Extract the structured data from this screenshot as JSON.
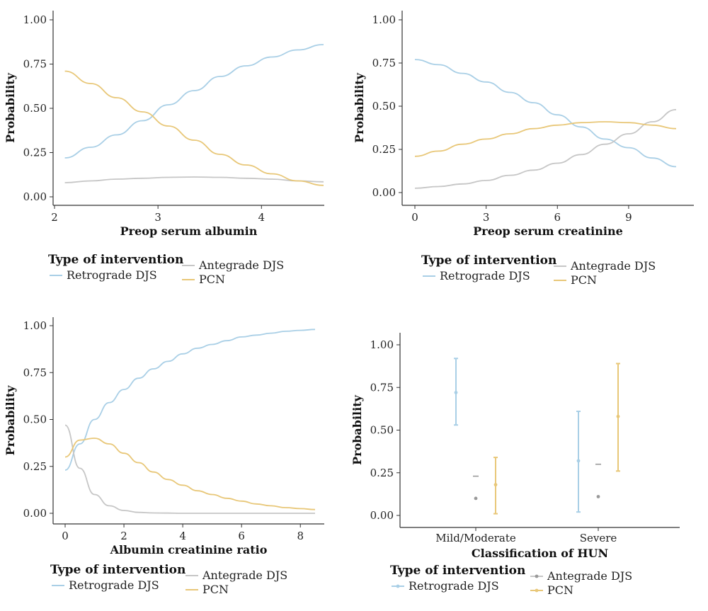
{
  "colors": {
    "retrograde": "#a9cfe6",
    "antegrade": "#c6c6c6",
    "pcn": "#e8c778",
    "axis": "#333333"
  },
  "chart_data": [
    {
      "id": "panel-albumin",
      "type": "line",
      "xlabel": "Preop serum albumin",
      "ylabel": "Probability",
      "xlim": [
        2.1,
        4.6
      ],
      "ylim": [
        0,
        1
      ],
      "xticks": [
        2,
        3,
        4
      ],
      "yticks": [
        "0.00",
        "0.25",
        "0.50",
        "0.75",
        "1.00"
      ],
      "x": [
        2.1,
        2.35,
        2.6,
        2.85,
        3.1,
        3.35,
        3.6,
        3.85,
        4.1,
        4.35,
        4.6
      ],
      "series": [
        {
          "name": "Retrograde DJS",
          "color": "retrograde",
          "values": [
            0.22,
            0.28,
            0.35,
            0.43,
            0.52,
            0.6,
            0.68,
            0.74,
            0.79,
            0.83,
            0.86
          ]
        },
        {
          "name": "Antegrade DJS",
          "color": "antegrade",
          "values": [
            0.08,
            0.09,
            0.1,
            0.105,
            0.11,
            0.112,
            0.11,
            0.105,
            0.1,
            0.09,
            0.085
          ]
        },
        {
          "name": "PCN",
          "color": "pcn",
          "values": [
            0.71,
            0.64,
            0.56,
            0.48,
            0.4,
            0.32,
            0.24,
            0.18,
            0.13,
            0.09,
            0.065
          ]
        }
      ],
      "legend": {
        "title": "Type of intervention",
        "entries": [
          "Retrograde DJS",
          "Antegrade DJS",
          "PCN"
        ]
      }
    },
    {
      "id": "panel-creatinine",
      "type": "line",
      "xlabel": "Preop serum creatinine",
      "ylabel": "Probability",
      "xlim": [
        0,
        11
      ],
      "ylim": [
        0,
        1
      ],
      "xticks": [
        0,
        3,
        6,
        9
      ],
      "yticks": [
        "0.00",
        "0.25",
        "0.50",
        "0.75",
        "1.00"
      ],
      "x": [
        0,
        1,
        2,
        3,
        4,
        5,
        6,
        7,
        8,
        9,
        10,
        11
      ],
      "series": [
        {
          "name": "Retrograde DJS",
          "color": "retrograde",
          "values": [
            0.77,
            0.74,
            0.69,
            0.64,
            0.58,
            0.52,
            0.45,
            0.38,
            0.31,
            0.26,
            0.2,
            0.15
          ]
        },
        {
          "name": "Antegrade DJS",
          "color": "antegrade",
          "values": [
            0.025,
            0.035,
            0.05,
            0.07,
            0.1,
            0.13,
            0.17,
            0.22,
            0.28,
            0.34,
            0.41,
            0.48
          ]
        },
        {
          "name": "PCN",
          "color": "pcn",
          "values": [
            0.21,
            0.24,
            0.28,
            0.31,
            0.34,
            0.37,
            0.39,
            0.405,
            0.41,
            0.405,
            0.39,
            0.37
          ]
        }
      ],
      "legend": {
        "title": "Type of intervention",
        "entries": [
          "Retrograde DJS",
          "Antegrade DJS",
          "PCN"
        ]
      }
    },
    {
      "id": "panel-ratio",
      "type": "line",
      "xlabel": "Albumin creatinine ratio",
      "ylabel": "Probability",
      "xlim": [
        0,
        8.5
      ],
      "ylim": [
        0,
        1
      ],
      "xticks": [
        0,
        2,
        4,
        6,
        8
      ],
      "yticks": [
        "0.00",
        "0.25",
        "0.50",
        "0.75",
        "1.00"
      ],
      "x": [
        0,
        0.5,
        1,
        1.5,
        2,
        2.5,
        3,
        3.5,
        4,
        4.5,
        5,
        5.5,
        6,
        6.5,
        7,
        7.5,
        8,
        8.5
      ],
      "series": [
        {
          "name": "Retrograde DJS",
          "color": "retrograde",
          "values": [
            0.23,
            0.37,
            0.5,
            0.59,
            0.66,
            0.72,
            0.77,
            0.81,
            0.85,
            0.88,
            0.9,
            0.92,
            0.94,
            0.95,
            0.96,
            0.97,
            0.975,
            0.98
          ]
        },
        {
          "name": "Antegrade DJS",
          "color": "antegrade",
          "values": [
            0.47,
            0.24,
            0.1,
            0.04,
            0.015,
            0.005,
            0.002,
            0.001,
            0,
            0,
            0,
            0,
            0,
            0,
            0,
            0,
            0,
            0
          ]
        },
        {
          "name": "PCN",
          "color": "pcn",
          "values": [
            0.3,
            0.39,
            0.4,
            0.37,
            0.32,
            0.27,
            0.22,
            0.18,
            0.15,
            0.12,
            0.1,
            0.08,
            0.065,
            0.05,
            0.04,
            0.03,
            0.025,
            0.02
          ]
        }
      ],
      "legend": {
        "title": "Type of intervention",
        "entries": [
          "Retrograde DJS",
          "Antegrade DJS",
          "PCN"
        ]
      }
    },
    {
      "id": "panel-hun",
      "type": "scatter",
      "xlabel": "Classification of HUN",
      "ylabel": "Probability",
      "ylim": [
        0,
        1
      ],
      "categories": [
        "Mild/Moderate",
        "Severe"
      ],
      "yticks": [
        "0.00",
        "0.25",
        "0.50",
        "0.75",
        "1.00"
      ],
      "series": [
        {
          "name": "Retrograde DJS",
          "color": "retrograde",
          "points": [
            {
              "estimate": 0.72,
              "lower": 0.53,
              "upper": 0.92
            },
            {
              "estimate": 0.32,
              "lower": 0.02,
              "upper": 0.61
            }
          ]
        },
        {
          "name": "Antegrade DJS",
          "color": "antegrade",
          "points": [
            {
              "estimate": 0.1,
              "lower": 0.1,
              "upper": 0.1,
              "dash": 0.23
            },
            {
              "estimate": 0.11,
              "lower": 0.11,
              "upper": 0.11,
              "dash": 0.3
            }
          ]
        },
        {
          "name": "PCN",
          "color": "pcn",
          "points": [
            {
              "estimate": 0.18,
              "lower": 0.01,
              "upper": 0.34
            },
            {
              "estimate": 0.58,
              "lower": 0.26,
              "upper": 0.89
            }
          ]
        }
      ],
      "legend": {
        "title": "Type of intervention",
        "entries": [
          "Retrograde DJS",
          "Antegrade DJS",
          "PCN"
        ]
      }
    }
  ]
}
